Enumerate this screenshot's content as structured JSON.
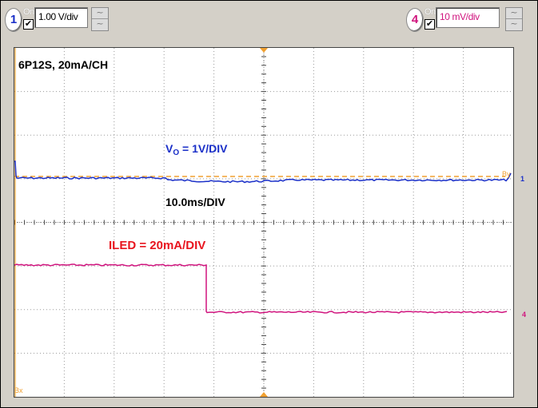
{
  "toolbar": {
    "channel1": {
      "number": "1",
      "on_label": "On",
      "checkbox": "✔",
      "scale": "1.00 V/div",
      "coupling_top": "~",
      "coupling_bottom": "~"
    },
    "channel4": {
      "number": "4",
      "on_label": "On",
      "checkbox": "✔",
      "scale": "10 mV/div",
      "coupling_top": "~",
      "coupling_bottom": "~"
    }
  },
  "screen": {
    "config_label": "6P12S, 20mA/CH",
    "vo_label_main": "V",
    "vo_label_sub": "O",
    "vo_label_rest": " = 1V/DIV",
    "timebase_label": "10.0ms/DIV",
    "iled_label": "ILED = 20mA/DIV",
    "bx_marker": "Bx",
    "by_marker": "By",
    "ch1_marker": "1",
    "ch4_marker": "4",
    "grid": {
      "divisions_x": 10,
      "divisions_y": 8
    },
    "colors": {
      "ch1": "#1a2fc8",
      "ch4": "#d0147e",
      "cursor": "#f0a030",
      "iled_text": "#e8141e"
    }
  }
}
